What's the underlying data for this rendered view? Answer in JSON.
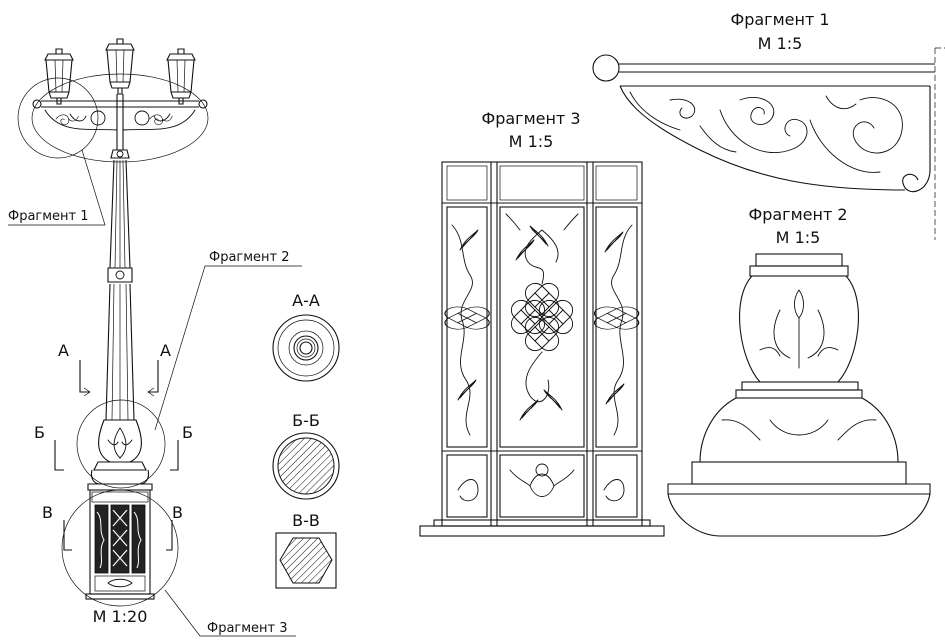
{
  "labels": {
    "fragment1_callout": "Фрагмент 1",
    "fragment2_callout": "Фрагмент 2",
    "fragment3_callout": "Фрагмент 3",
    "section_a_left": "А",
    "section_a_right": "А",
    "section_b_left": "Б",
    "section_b_right": "Б",
    "section_v_left": "В",
    "section_v_right": "В",
    "main_scale": "М 1:20"
  },
  "sections": {
    "aa_title": "А-А",
    "bb_title": "Б-Б",
    "vv_title": "В-В"
  },
  "fragment1": {
    "title": "Фрагмент 1",
    "scale": "М 1:5"
  },
  "fragment2": {
    "title": "Фрагмент 2",
    "scale": "М 1:5"
  },
  "fragment3": {
    "title": "Фрагмент 3",
    "scale": "М 1:5"
  }
}
